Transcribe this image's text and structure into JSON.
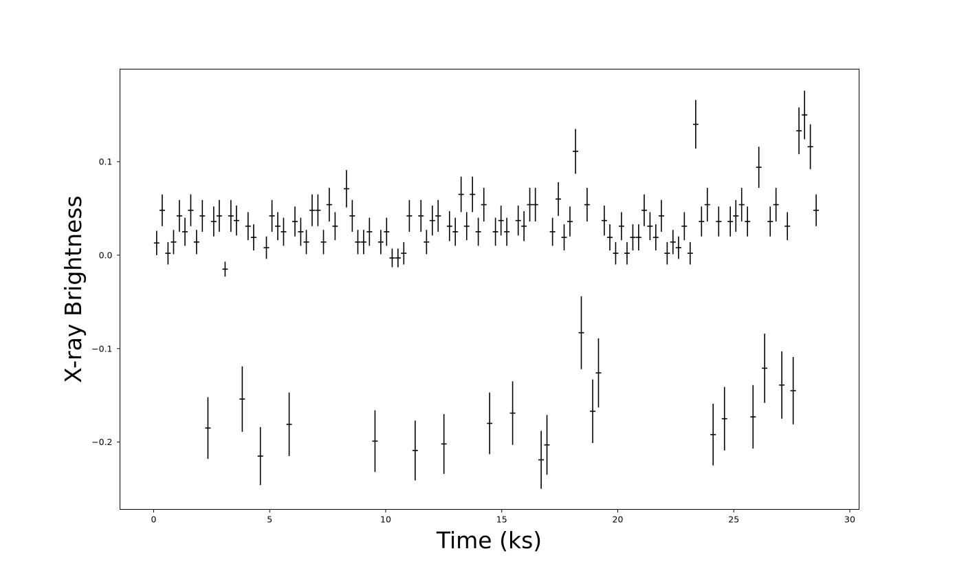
{
  "chart_data": {
    "type": "scatter",
    "title": "",
    "xlabel": "Time (ks)",
    "ylabel": "X-ray Brightness",
    "xlim": [
      -1.45,
      30.4
    ],
    "ylim": [
      -0.272,
      0.199
    ],
    "xticks": [
      0,
      5,
      10,
      15,
      20,
      25,
      30
    ],
    "xtick_labels": [
      "0",
      "5",
      "10",
      "15",
      "20",
      "25",
      "30"
    ],
    "yticks": [
      -0.2,
      -0.1,
      0.0,
      0.1
    ],
    "ytick_labels": [
      "−0.2",
      "−0.1",
      "0.0",
      "0.1"
    ],
    "grid": false,
    "legend": false,
    "marker": "horizontal tick with vertical error bar",
    "color": "#000000",
    "series": [
      {
        "points": [
          {
            "x": 0.13,
            "y": 0.013,
            "err": 0.013
          },
          {
            "x": 0.37,
            "y": 0.048,
            "err": 0.017
          },
          {
            "x": 0.62,
            "y": 0.002,
            "err": 0.012
          },
          {
            "x": 0.86,
            "y": 0.014,
            "err": 0.013
          },
          {
            "x": 1.11,
            "y": 0.042,
            "err": 0.017
          },
          {
            "x": 1.35,
            "y": 0.025,
            "err": 0.015
          },
          {
            "x": 1.6,
            "y": 0.048,
            "err": 0.017
          },
          {
            "x": 1.85,
            "y": 0.014,
            "err": 0.013
          },
          {
            "x": 2.1,
            "y": 0.042,
            "err": 0.017
          },
          {
            "x": 2.34,
            "y": -0.185,
            "err": 0.033
          },
          {
            "x": 2.59,
            "y": 0.036,
            "err": 0.016
          },
          {
            "x": 2.83,
            "y": 0.042,
            "err": 0.017
          },
          {
            "x": 3.08,
            "y": -0.015,
            "err": 0.008
          },
          {
            "x": 3.33,
            "y": 0.042,
            "err": 0.017
          },
          {
            "x": 3.57,
            "y": 0.037,
            "err": 0.016
          },
          {
            "x": 3.82,
            "y": -0.154,
            "err": 0.035
          },
          {
            "x": 4.07,
            "y": 0.031,
            "err": 0.015
          },
          {
            "x": 4.31,
            "y": 0.019,
            "err": 0.014
          },
          {
            "x": 4.6,
            "y": -0.215,
            "err": 0.031
          },
          {
            "x": 4.86,
            "y": 0.008,
            "err": 0.012
          },
          {
            "x": 5.1,
            "y": 0.042,
            "err": 0.017
          },
          {
            "x": 5.35,
            "y": 0.031,
            "err": 0.015
          },
          {
            "x": 5.6,
            "y": 0.025,
            "err": 0.015
          },
          {
            "x": 5.84,
            "y": -0.181,
            "err": 0.034
          },
          {
            "x": 6.09,
            "y": 0.036,
            "err": 0.016
          },
          {
            "x": 6.34,
            "y": 0.025,
            "err": 0.015
          },
          {
            "x": 6.58,
            "y": 0.014,
            "err": 0.013
          },
          {
            "x": 6.83,
            "y": 0.048,
            "err": 0.017
          },
          {
            "x": 7.08,
            "y": 0.048,
            "err": 0.017
          },
          {
            "x": 7.32,
            "y": 0.014,
            "err": 0.013
          },
          {
            "x": 7.57,
            "y": 0.054,
            "err": 0.018
          },
          {
            "x": 7.82,
            "y": 0.031,
            "err": 0.015
          },
          {
            "x": 8.31,
            "y": 0.071,
            "err": 0.02
          },
          {
            "x": 8.56,
            "y": 0.042,
            "err": 0.017
          },
          {
            "x": 8.8,
            "y": 0.014,
            "err": 0.013
          },
          {
            "x": 9.05,
            "y": 0.014,
            "err": 0.013
          },
          {
            "x": 9.3,
            "y": 0.025,
            "err": 0.015
          },
          {
            "x": 9.54,
            "y": -0.199,
            "err": 0.033
          },
          {
            "x": 9.79,
            "y": 0.014,
            "err": 0.013
          },
          {
            "x": 10.04,
            "y": 0.025,
            "err": 0.015
          },
          {
            "x": 10.28,
            "y": -0.003,
            "err": 0.01
          },
          {
            "x": 10.53,
            "y": -0.003,
            "err": 0.01
          },
          {
            "x": 10.78,
            "y": 0.002,
            "err": 0.012
          },
          {
            "x": 11.02,
            "y": 0.042,
            "err": 0.017
          },
          {
            "x": 11.27,
            "y": -0.209,
            "err": 0.032
          },
          {
            "x": 11.52,
            "y": 0.042,
            "err": 0.017
          },
          {
            "x": 11.76,
            "y": 0.014,
            "err": 0.013
          },
          {
            "x": 12.01,
            "y": 0.037,
            "err": 0.016
          },
          {
            "x": 12.26,
            "y": 0.042,
            "err": 0.017
          },
          {
            "x": 12.51,
            "y": -0.202,
            "err": 0.032
          },
          {
            "x": 12.75,
            "y": 0.031,
            "err": 0.016
          },
          {
            "x": 13.0,
            "y": 0.025,
            "err": 0.015
          },
          {
            "x": 13.25,
            "y": 0.065,
            "err": 0.019
          },
          {
            "x": 13.49,
            "y": 0.031,
            "err": 0.015
          },
          {
            "x": 13.74,
            "y": 0.065,
            "err": 0.019
          },
          {
            "x": 13.99,
            "y": 0.025,
            "err": 0.015
          },
          {
            "x": 14.23,
            "y": 0.054,
            "err": 0.018
          },
          {
            "x": 14.48,
            "y": -0.18,
            "err": 0.033
          },
          {
            "x": 14.73,
            "y": 0.025,
            "err": 0.015
          },
          {
            "x": 14.97,
            "y": 0.037,
            "err": 0.016
          },
          {
            "x": 15.22,
            "y": 0.025,
            "err": 0.015
          },
          {
            "x": 15.47,
            "y": -0.169,
            "err": 0.034
          },
          {
            "x": 15.71,
            "y": 0.037,
            "err": 0.016
          },
          {
            "x": 15.96,
            "y": 0.031,
            "err": 0.016
          },
          {
            "x": 16.21,
            "y": 0.054,
            "err": 0.018
          },
          {
            "x": 16.45,
            "y": 0.054,
            "err": 0.018
          },
          {
            "x": 16.7,
            "y": -0.219,
            "err": 0.031
          },
          {
            "x": 16.95,
            "y": -0.203,
            "err": 0.032
          },
          {
            "x": 17.19,
            "y": 0.025,
            "err": 0.015
          },
          {
            "x": 17.44,
            "y": 0.06,
            "err": 0.018
          },
          {
            "x": 17.69,
            "y": 0.019,
            "err": 0.014
          },
          {
            "x": 17.94,
            "y": 0.036,
            "err": 0.016
          },
          {
            "x": 18.18,
            "y": 0.111,
            "err": 0.024
          },
          {
            "x": 18.43,
            "y": -0.083,
            "err": 0.039
          },
          {
            "x": 18.68,
            "y": 0.054,
            "err": 0.018
          },
          {
            "x": 18.92,
            "y": -0.167,
            "err": 0.034
          },
          {
            "x": 19.17,
            "y": -0.126,
            "err": 0.037
          },
          {
            "x": 19.42,
            "y": 0.037,
            "err": 0.016
          },
          {
            "x": 19.66,
            "y": 0.019,
            "err": 0.014
          },
          {
            "x": 19.91,
            "y": 0.002,
            "err": 0.012
          },
          {
            "x": 20.16,
            "y": 0.031,
            "err": 0.015
          },
          {
            "x": 20.4,
            "y": 0.002,
            "err": 0.012
          },
          {
            "x": 20.65,
            "y": 0.019,
            "err": 0.014
          },
          {
            "x": 20.9,
            "y": 0.019,
            "err": 0.014
          },
          {
            "x": 21.14,
            "y": 0.048,
            "err": 0.017
          },
          {
            "x": 21.39,
            "y": 0.031,
            "err": 0.015
          },
          {
            "x": 21.64,
            "y": 0.019,
            "err": 0.014
          },
          {
            "x": 21.88,
            "y": 0.042,
            "err": 0.017
          },
          {
            "x": 22.13,
            "y": 0.002,
            "err": 0.012
          },
          {
            "x": 22.38,
            "y": 0.014,
            "err": 0.013
          },
          {
            "x": 22.62,
            "y": 0.008,
            "err": 0.012
          },
          {
            "x": 22.87,
            "y": 0.031,
            "err": 0.015
          },
          {
            "x": 23.12,
            "y": 0.002,
            "err": 0.012
          },
          {
            "x": 23.36,
            "y": 0.14,
            "err": 0.026
          },
          {
            "x": 23.61,
            "y": 0.036,
            "err": 0.016
          },
          {
            "x": 23.86,
            "y": 0.054,
            "err": 0.018
          },
          {
            "x": 24.11,
            "y": -0.192,
            "err": 0.033
          },
          {
            "x": 24.35,
            "y": 0.036,
            "err": 0.016
          },
          {
            "x": 24.6,
            "y": -0.175,
            "err": 0.034
          },
          {
            "x": 24.85,
            "y": 0.036,
            "err": 0.016
          },
          {
            "x": 25.09,
            "y": 0.042,
            "err": 0.017
          },
          {
            "x": 25.34,
            "y": 0.054,
            "err": 0.018
          },
          {
            "x": 25.59,
            "y": 0.036,
            "err": 0.016
          },
          {
            "x": 25.83,
            "y": -0.173,
            "err": 0.034
          },
          {
            "x": 26.08,
            "y": 0.094,
            "err": 0.022
          },
          {
            "x": 26.33,
            "y": -0.121,
            "err": 0.037
          },
          {
            "x": 26.57,
            "y": 0.036,
            "err": 0.016
          },
          {
            "x": 26.82,
            "y": 0.054,
            "err": 0.018
          },
          {
            "x": 27.07,
            "y": -0.139,
            "err": 0.036
          },
          {
            "x": 27.31,
            "y": 0.031,
            "err": 0.015
          },
          {
            "x": 27.56,
            "y": -0.145,
            "err": 0.036
          },
          {
            "x": 27.81,
            "y": 0.133,
            "err": 0.025
          },
          {
            "x": 28.05,
            "y": 0.15,
            "err": 0.026
          },
          {
            "x": 28.3,
            "y": 0.116,
            "err": 0.024
          },
          {
            "x": 28.55,
            "y": 0.048,
            "err": 0.017
          }
        ]
      }
    ]
  }
}
